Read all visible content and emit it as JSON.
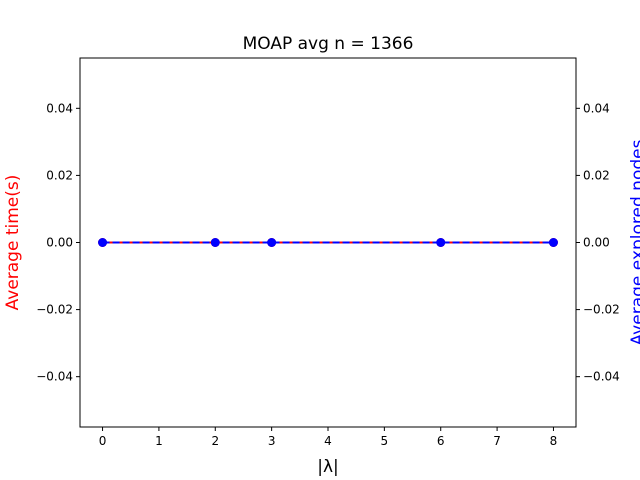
{
  "chart_data": {
    "type": "line",
    "title": "MOAP avg n = 1366",
    "xlabel": "|λ|",
    "ylabel_left": "Average time(s)",
    "ylabel_right": "Average explored nodes",
    "xlim": [
      -0.4,
      8.4
    ],
    "ylim": [
      -0.055,
      0.055
    ],
    "x_ticks": [
      0,
      1,
      2,
      3,
      4,
      5,
      6,
      7,
      8
    ],
    "y_ticks": [
      -0.04,
      -0.02,
      0.0,
      0.02,
      0.04
    ],
    "y_tick_labels": [
      "−0.04",
      "−0.02",
      "0.00",
      "0.02",
      "0.04"
    ],
    "grid": false,
    "colors": {
      "left_axis_label": "#ff0000",
      "right_axis_label": "#0000ff",
      "time_series": "#ff0000",
      "nodes_series": "#0000ff"
    },
    "series": [
      {
        "axis": "left",
        "style": "solid-circle",
        "x": [
          0,
          2,
          3,
          6,
          8
        ],
        "y": [
          0,
          0,
          0,
          0,
          0
        ]
      },
      {
        "axis": "right",
        "style": "dashed-circle",
        "x": [
          0,
          2,
          3,
          6,
          8
        ],
        "y": [
          0,
          0,
          0,
          0,
          0
        ]
      }
    ]
  }
}
